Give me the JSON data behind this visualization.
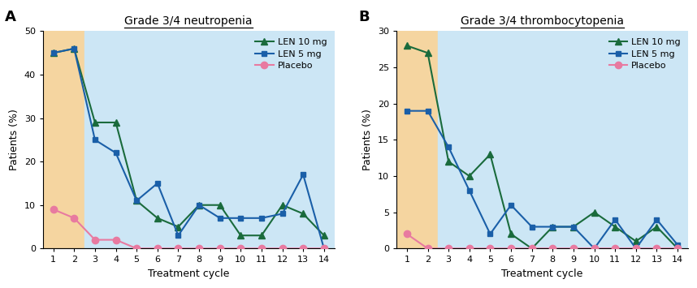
{
  "panel_A": {
    "title": "Grade 3/4 neutropenia",
    "xlabel": "Treatment cycle",
    "ylabel": "Patients (%)",
    "ylim": [
      0,
      50
    ],
    "yticks": [
      0,
      10,
      20,
      30,
      40,
      50
    ],
    "cycles": [
      1,
      2,
      3,
      4,
      5,
      6,
      7,
      8,
      9,
      10,
      11,
      12,
      13,
      14
    ],
    "len10": [
      45,
      46,
      29,
      29,
      11,
      7,
      5,
      10,
      10,
      3,
      3,
      10,
      8,
      3
    ],
    "len5": [
      45,
      46,
      25,
      22,
      11,
      15,
      3,
      10,
      7,
      7,
      7,
      8,
      17,
      0
    ],
    "placebo": [
      9,
      7,
      2,
      2,
      0,
      0,
      0,
      0,
      0,
      0,
      0,
      0,
      0,
      0
    ]
  },
  "panel_B": {
    "title": "Grade 3/4 thrombocytopenia",
    "xlabel": "Treatment cycle",
    "ylabel": "Patients (%)",
    "ylim": [
      0,
      30
    ],
    "yticks": [
      0,
      5,
      10,
      15,
      20,
      25,
      30
    ],
    "cycles": [
      1,
      2,
      3,
      4,
      5,
      6,
      7,
      8,
      9,
      10,
      11,
      12,
      13,
      14
    ],
    "len10": [
      28,
      27,
      12,
      10,
      13,
      2,
      0,
      3,
      3,
      5,
      3,
      1,
      3,
      0
    ],
    "len5": [
      19,
      19,
      14,
      8,
      2,
      6,
      3,
      3,
      3,
      0,
      4,
      0,
      4,
      0.5
    ],
    "placebo": [
      2,
      0,
      0,
      0,
      0,
      0,
      0,
      0,
      0,
      0,
      0,
      0,
      0,
      0
    ]
  },
  "colors": {
    "len10": "#1a6b3c",
    "len5": "#1a5fa8",
    "placebo": "#e87aa0"
  },
  "bg_orange": "#f5d5a0",
  "bg_blue": "#cce6f5",
  "label_len10": "LEN 10 mg",
  "label_len5": "LEN 5 mg",
  "label_placebo": "Placebo",
  "panel_labels": [
    "A",
    "B"
  ]
}
